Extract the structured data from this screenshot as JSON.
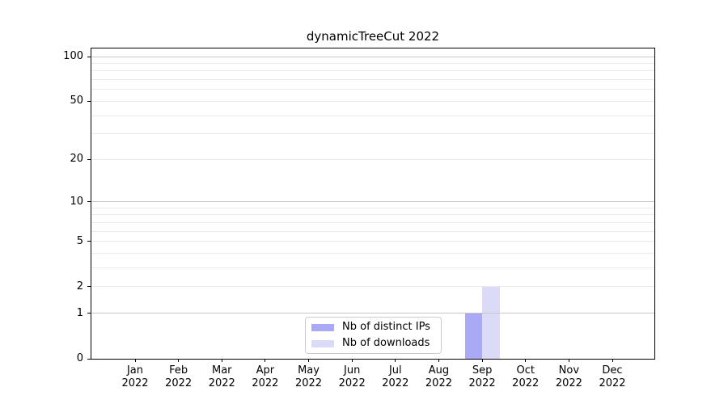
{
  "chart_data": {
    "type": "bar",
    "title": "dynamicTreeCut 2022",
    "categories": [
      {
        "month": "Jan",
        "year": "2022"
      },
      {
        "month": "Feb",
        "year": "2022"
      },
      {
        "month": "Mar",
        "year": "2022"
      },
      {
        "month": "Apr",
        "year": "2022"
      },
      {
        "month": "May",
        "year": "2022"
      },
      {
        "month": "Jun",
        "year": "2022"
      },
      {
        "month": "Jul",
        "year": "2022"
      },
      {
        "month": "Aug",
        "year": "2022"
      },
      {
        "month": "Sep",
        "year": "2022"
      },
      {
        "month": "Oct",
        "year": "2022"
      },
      {
        "month": "Nov",
        "year": "2022"
      },
      {
        "month": "Dec",
        "year": "2022"
      }
    ],
    "series": [
      {
        "name": "Nb of distinct IPs",
        "color": "#a9a9f6",
        "values": [
          0,
          0,
          0,
          0,
          0,
          0,
          0,
          0,
          1,
          0,
          0,
          0
        ]
      },
      {
        "name": "Nb of downloads",
        "color": "#dbdbf8",
        "values": [
          0,
          0,
          0,
          0,
          0,
          0,
          0,
          0,
          2,
          0,
          0,
          0
        ]
      }
    ],
    "xlabel": "",
    "ylabel": "",
    "y_axis": {
      "scale": "log1p",
      "tick_values": [
        0,
        1,
        2,
        5,
        10,
        20,
        50,
        100
      ],
      "tick_labels": [
        "0",
        "1",
        "2",
        "5",
        "10",
        "20",
        "50",
        "100"
      ],
      "major_gridlines": [
        1,
        10,
        100
      ],
      "minor_gridlines": [
        2,
        3,
        4,
        5,
        6,
        7,
        8,
        9,
        20,
        30,
        40,
        50,
        60,
        70,
        80,
        90
      ],
      "ylim": [
        0,
        111
      ]
    },
    "grid": {
      "major_color": "#c6c6c6",
      "minor_color": "#eaeaea"
    },
    "legend_position": "bottom-center"
  }
}
